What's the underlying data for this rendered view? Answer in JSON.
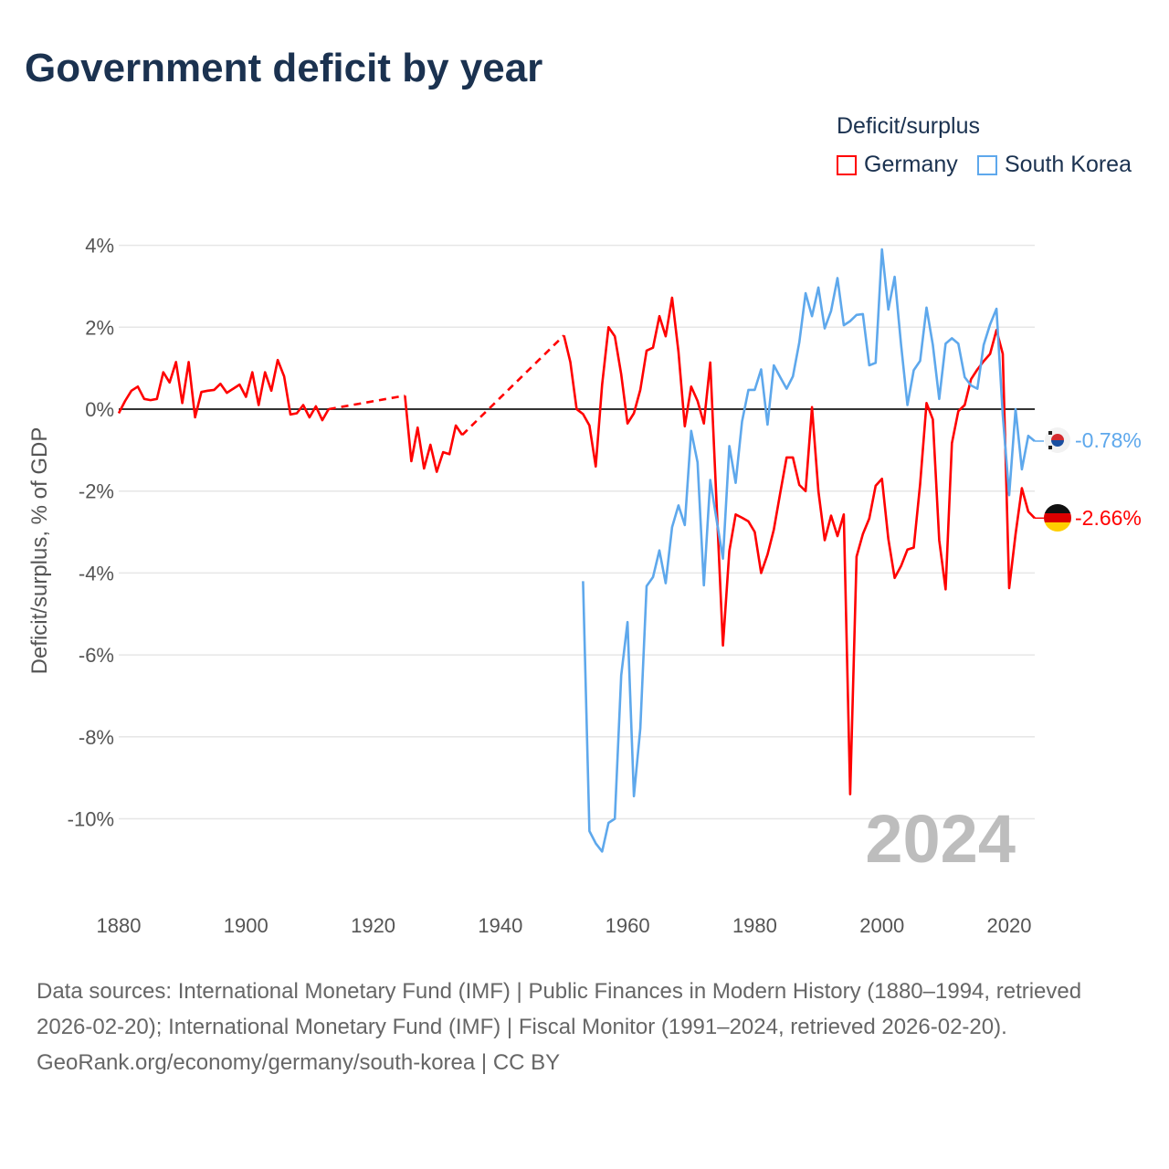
{
  "title": "Government deficit by year",
  "legend": {
    "title": "Deficit/surplus",
    "items": [
      {
        "name": "Germany",
        "color": "#ff0000"
      },
      {
        "name": "South Korea",
        "color": "#5ea8ec"
      }
    ]
  },
  "year_label": "2024",
  "end_labels": {
    "south_korea": "-0.78%",
    "germany": "-2.66%"
  },
  "footer": {
    "sources": "Data sources: International Monetary Fund (IMF) | Public Finances in Modern History (1880–1994, retrieved 2026-02-20); International Monetary Fund (IMF) | Fiscal Monitor (1991–2024, retrieved 2026-02-20).",
    "credit": "GeoRank.org/economy/germany/south-korea | CC BY"
  },
  "chart_data": {
    "type": "line",
    "title": "Government deficit by year",
    "xlabel": "",
    "ylabel": "Deficit/surplus, % of GDP",
    "xlim": [
      1880,
      2024
    ],
    "ylim": [
      -11,
      4
    ],
    "xticks": [
      {
        "v": 1880,
        "label": "1880"
      },
      {
        "v": 1900,
        "label": "1900"
      },
      {
        "v": 1920,
        "label": "1920"
      },
      {
        "v": 1940,
        "label": "1940"
      },
      {
        "v": 1960,
        "label": "1960"
      },
      {
        "v": 1980,
        "label": "1980"
      },
      {
        "v": 2000,
        "label": "2000"
      },
      {
        "v": 2020,
        "label": "2020"
      }
    ],
    "yticks": [
      {
        "v": 4,
        "label": "4%"
      },
      {
        "v": 2,
        "label": "2%"
      },
      {
        "v": 0,
        "label": "0%"
      },
      {
        "v": -2,
        "label": "-2%"
      },
      {
        "v": -4,
        "label": "-4%"
      },
      {
        "v": -6,
        "label": "-6%"
      },
      {
        "v": -8,
        "label": "-8%"
      },
      {
        "v": -10,
        "label": "-10%"
      }
    ],
    "grid": true,
    "legend_position": "top-right",
    "series": [
      {
        "name": "Germany",
        "color": "#ff0000",
        "points": [
          [
            1880,
            -0.1
          ],
          [
            1881,
            0.2
          ],
          [
            1882,
            0.45
          ],
          [
            1883,
            0.55
          ],
          [
            1884,
            0.25
          ],
          [
            1885,
            0.22
          ],
          [
            1886,
            0.25
          ],
          [
            1887,
            0.9
          ],
          [
            1888,
            0.65
          ],
          [
            1889,
            1.15
          ],
          [
            1890,
            0.15
          ],
          [
            1891,
            1.15
          ],
          [
            1892,
            -0.2
          ],
          [
            1893,
            0.42
          ],
          [
            1894,
            0.45
          ],
          [
            1895,
            0.47
          ],
          [
            1896,
            0.62
          ],
          [
            1897,
            0.4
          ],
          [
            1898,
            0.5
          ],
          [
            1899,
            0.6
          ],
          [
            1900,
            0.3
          ],
          [
            1901,
            0.9
          ],
          [
            1902,
            0.1
          ],
          [
            1903,
            0.9
          ],
          [
            1904,
            0.45
          ],
          [
            1905,
            1.2
          ],
          [
            1906,
            0.8
          ],
          [
            1907,
            -0.13
          ],
          [
            1908,
            -0.1
          ],
          [
            1909,
            0.1
          ],
          [
            1910,
            -0.2
          ],
          [
            1911,
            0.07
          ],
          [
            1912,
            -0.27
          ],
          [
            1913,
            0.0
          ],
          [
            1925,
            0.33
          ],
          [
            1926,
            -1.27
          ],
          [
            1927,
            -0.45
          ],
          [
            1928,
            -1.45
          ],
          [
            1929,
            -0.87
          ],
          [
            1930,
            -1.53
          ],
          [
            1931,
            -1.05
          ],
          [
            1932,
            -1.1
          ],
          [
            1933,
            -0.4
          ],
          [
            1934,
            -0.63
          ],
          [
            1950,
            1.8
          ],
          [
            1951,
            1.15
          ],
          [
            1952,
            0.0
          ],
          [
            1953,
            -0.12
          ],
          [
            1954,
            -0.4
          ],
          [
            1955,
            -1.4
          ],
          [
            1956,
            0.6
          ],
          [
            1957,
            2.0
          ],
          [
            1958,
            1.78
          ],
          [
            1959,
            0.85
          ],
          [
            1960,
            -0.35
          ],
          [
            1961,
            -0.1
          ],
          [
            1962,
            0.47
          ],
          [
            1963,
            1.43
          ],
          [
            1964,
            1.5
          ],
          [
            1965,
            2.27
          ],
          [
            1966,
            1.78
          ],
          [
            1967,
            2.72
          ],
          [
            1968,
            1.4
          ],
          [
            1969,
            -0.42
          ],
          [
            1970,
            0.55
          ],
          [
            1971,
            0.2
          ],
          [
            1972,
            -0.35
          ],
          [
            1973,
            1.14
          ],
          [
            1974,
            -2.3
          ],
          [
            1975,
            -5.77
          ],
          [
            1976,
            -3.46
          ],
          [
            1977,
            -2.57
          ],
          [
            1978,
            -2.65
          ],
          [
            1979,
            -2.74
          ],
          [
            1980,
            -3.0
          ],
          [
            1981,
            -4.0
          ],
          [
            1982,
            -3.55
          ],
          [
            1983,
            -2.94
          ],
          [
            1984,
            -2.05
          ],
          [
            1985,
            -1.18
          ],
          [
            1986,
            -1.18
          ],
          [
            1987,
            -1.85
          ],
          [
            1988,
            -2.0
          ],
          [
            1989,
            0.05
          ],
          [
            1990,
            -2.0
          ],
          [
            1991,
            -3.2
          ],
          [
            1992,
            -2.6
          ],
          [
            1993,
            -3.1
          ],
          [
            1994,
            -2.57
          ],
          [
            1995,
            -9.4
          ],
          [
            1996,
            -3.6
          ],
          [
            1997,
            -3.05
          ],
          [
            1998,
            -2.67
          ],
          [
            1999,
            -1.87
          ],
          [
            2000,
            -1.7
          ],
          [
            2001,
            -3.17
          ],
          [
            2002,
            -4.12
          ],
          [
            2003,
            -3.83
          ],
          [
            2004,
            -3.43
          ],
          [
            2005,
            -3.38
          ],
          [
            2006,
            -1.83
          ],
          [
            2007,
            0.15
          ],
          [
            2008,
            -0.25
          ],
          [
            2009,
            -3.2
          ],
          [
            2010,
            -4.4
          ],
          [
            2011,
            -0.83
          ],
          [
            2012,
            -0.05
          ],
          [
            2013,
            0.1
          ],
          [
            2014,
            0.73
          ],
          [
            2015,
            0.97
          ],
          [
            2016,
            1.17
          ],
          [
            2017,
            1.35
          ],
          [
            2018,
            1.93
          ],
          [
            2019,
            1.35
          ],
          [
            2020,
            -4.37
          ],
          [
            2021,
            -3.05
          ],
          [
            2022,
            -1.93
          ],
          [
            2023,
            -2.5
          ],
          [
            2024,
            -2.66
          ]
        ]
      },
      {
        "name": "South Korea",
        "color": "#5ea8ec",
        "points": [
          [
            1953,
            -4.2
          ],
          [
            1954,
            -10.3
          ],
          [
            1955,
            -10.6
          ],
          [
            1956,
            -10.8
          ],
          [
            1957,
            -10.1
          ],
          [
            1958,
            -10.0
          ],
          [
            1959,
            -6.5
          ],
          [
            1960,
            -5.2
          ],
          [
            1961,
            -9.45
          ],
          [
            1962,
            -7.8
          ],
          [
            1963,
            -4.32
          ],
          [
            1964,
            -4.1
          ],
          [
            1965,
            -3.45
          ],
          [
            1966,
            -4.25
          ],
          [
            1967,
            -2.88
          ],
          [
            1968,
            -2.35
          ],
          [
            1969,
            -2.83
          ],
          [
            1970,
            -0.53
          ],
          [
            1971,
            -1.3
          ],
          [
            1972,
            -4.3
          ],
          [
            1973,
            -1.73
          ],
          [
            1974,
            -2.7
          ],
          [
            1975,
            -3.65
          ],
          [
            1976,
            -0.9
          ],
          [
            1977,
            -1.8
          ],
          [
            1978,
            -0.3
          ],
          [
            1979,
            0.47
          ],
          [
            1980,
            0.47
          ],
          [
            1981,
            0.97
          ],
          [
            1982,
            -0.38
          ],
          [
            1983,
            1.07
          ],
          [
            1984,
            0.78
          ],
          [
            1985,
            0.5
          ],
          [
            1986,
            0.8
          ],
          [
            1987,
            1.63
          ],
          [
            1988,
            2.83
          ],
          [
            1989,
            2.27
          ],
          [
            1990,
            2.97
          ],
          [
            1991,
            1.97
          ],
          [
            1992,
            2.4
          ],
          [
            1993,
            3.2
          ],
          [
            1994,
            2.05
          ],
          [
            1995,
            2.15
          ],
          [
            1996,
            2.3
          ],
          [
            1997,
            2.32
          ],
          [
            1998,
            1.07
          ],
          [
            1999,
            1.13
          ],
          [
            2000,
            3.9
          ],
          [
            2001,
            2.43
          ],
          [
            2002,
            3.23
          ],
          [
            2003,
            1.58
          ],
          [
            2004,
            0.1
          ],
          [
            2005,
            0.95
          ],
          [
            2006,
            1.18
          ],
          [
            2007,
            2.48
          ],
          [
            2008,
            1.57
          ],
          [
            2009,
            0.25
          ],
          [
            2010,
            1.6
          ],
          [
            2011,
            1.73
          ],
          [
            2012,
            1.6
          ],
          [
            2013,
            0.78
          ],
          [
            2014,
            0.58
          ],
          [
            2015,
            0.5
          ],
          [
            2016,
            1.57
          ],
          [
            2017,
            2.07
          ],
          [
            2018,
            2.45
          ],
          [
            2019,
            -0.15
          ],
          [
            2020,
            -2.1
          ],
          [
            2021,
            0.0
          ],
          [
            2022,
            -1.47
          ],
          [
            2023,
            -0.65
          ],
          [
            2024,
            -0.78
          ]
        ]
      }
    ]
  }
}
